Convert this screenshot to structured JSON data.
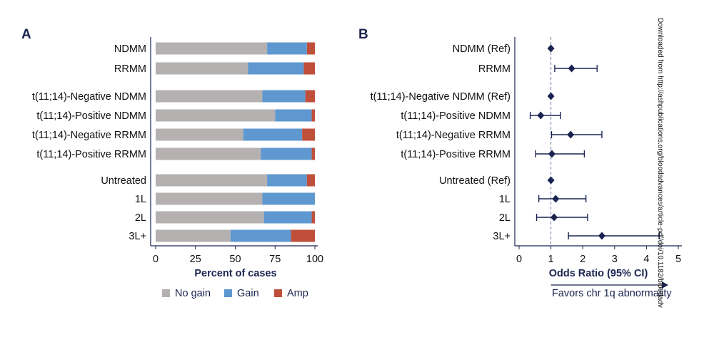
{
  "colors": {
    "no_gain": "#b5b1b1",
    "gain": "#5f98d0",
    "amp": "#bf4f3a",
    "marker": "#1b2450",
    "axis": "#1b2450",
    "ref_line": "#6b7a9e"
  },
  "watermark": "Downloaded from http://ashpublications.org/bloodadvances/article-pdf/doi/10.1182/bloodadv",
  "chart_data": [
    {
      "type": "bar",
      "orientation": "horizontal",
      "stacked": true,
      "panel_label": "A",
      "xlabel": "Percent of cases",
      "xlim": [
        0,
        100
      ],
      "xticks": [
        "0",
        "25",
        "50",
        "75",
        "100"
      ],
      "categories": [
        "NDMM",
        "RRMM",
        "t(11;14)-Negative NDMM",
        "t(11;14)-Positive NDMM",
        "t(11;14)-Negative RRMM",
        "t(11;14)-Positive RRMM",
        "Untreated",
        "1L",
        "2L",
        "3L+"
      ],
      "series": [
        {
          "name": "No gain",
          "values": [
            70,
            58,
            67,
            75,
            55,
            66,
            70,
            67,
            68,
            47
          ]
        },
        {
          "name": "Gain",
          "values": [
            25,
            35,
            27,
            23,
            37,
            32,
            25,
            33,
            30,
            38
          ]
        },
        {
          "name": "Amp",
          "values": [
            5,
            7,
            6,
            2,
            8,
            2,
            5,
            0,
            2,
            15
          ]
        }
      ],
      "legend_position": "bottom"
    },
    {
      "type": "scatter",
      "subtype": "forest",
      "panel_label": "B",
      "xlabel": "Odds Ratio (95% CI)",
      "xlim": [
        0,
        5
      ],
      "xticks": [
        "0",
        "1",
        "2",
        "3",
        "4",
        "5"
      ],
      "reference_line": 1,
      "annotation": "Favors chr 1q abnormality",
      "categories": [
        "NDMM (Ref)",
        "RRMM",
        "t(11;14)-Negative NDMM (Ref)",
        "t(11;14)-Positive NDMM",
        "t(11;14)-Negative RRMM",
        "t(11;14)-Positive RRMM",
        "Untreated (Ref)",
        "1L",
        "2L",
        "3L+"
      ],
      "or": [
        1,
        1.65,
        1,
        0.68,
        1.62,
        1.03,
        1,
        1.15,
        1.1,
        2.6
      ],
      "low": [
        null,
        1.12,
        null,
        0.35,
        1.02,
        0.52,
        null,
        0.62,
        0.55,
        1.55
      ],
      "high": [
        null,
        2.45,
        null,
        1.3,
        2.6,
        2.05,
        null,
        2.1,
        2.15,
        4.4
      ]
    }
  ]
}
